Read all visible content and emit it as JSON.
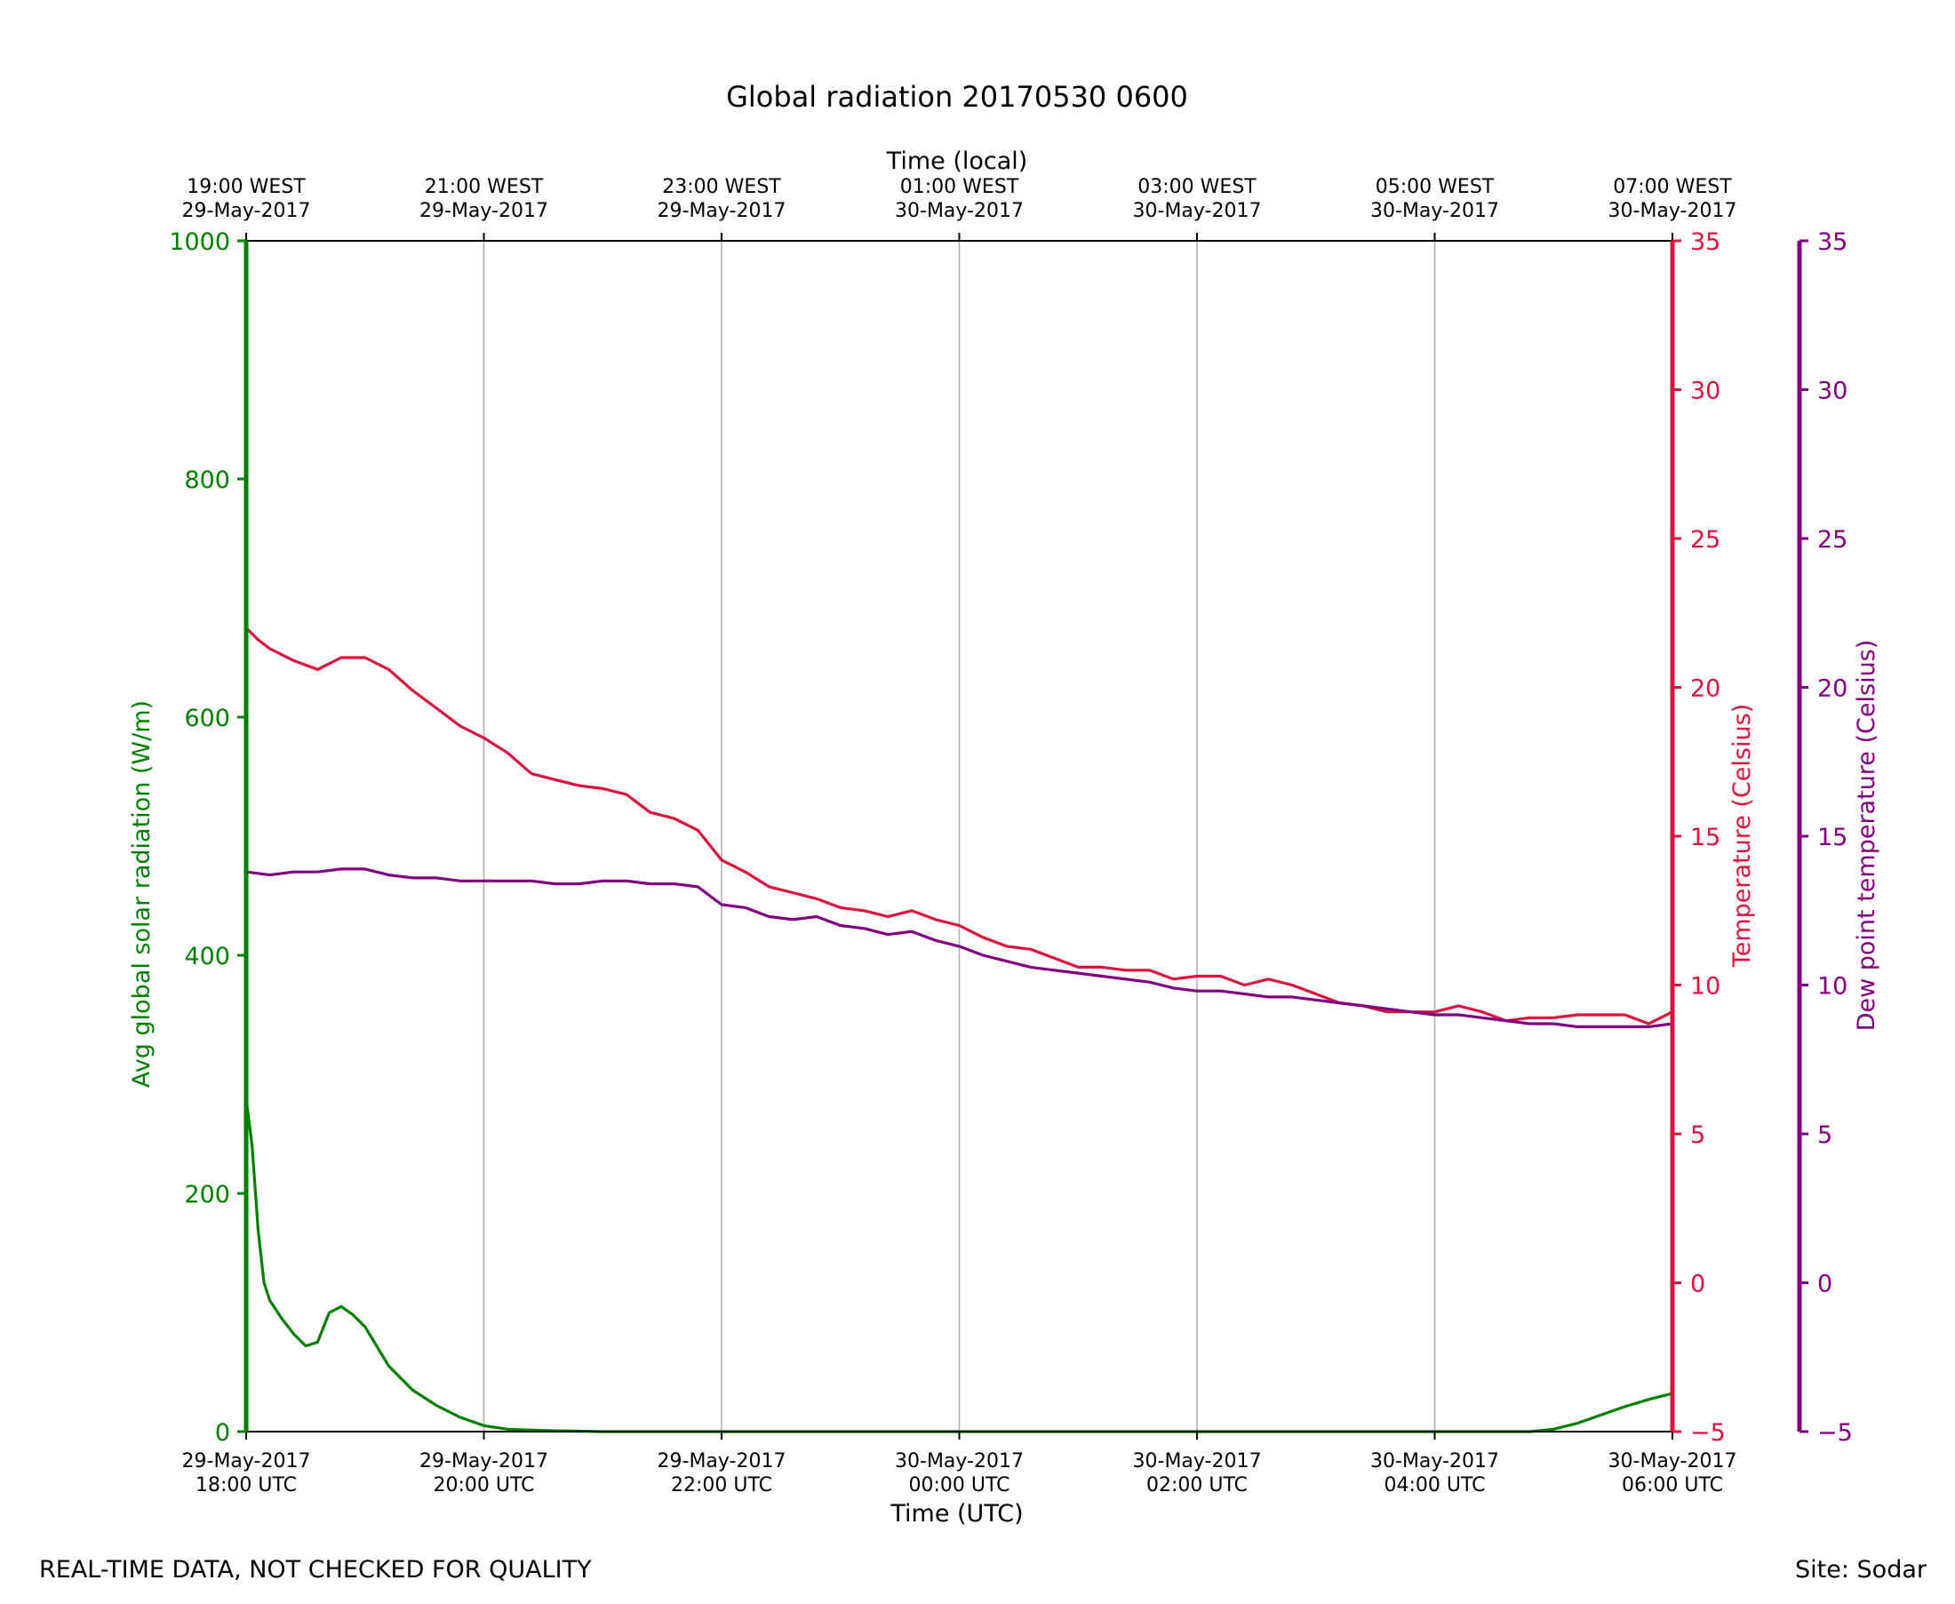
{
  "chart_data": {
    "type": "line",
    "title": "Global radiation 20170530 0600",
    "xlabel": "Time (UTC)",
    "x2label": "Time (local)",
    "x_range_hours": [
      18,
      30
    ],
    "x_ticks_utc": [
      {
        "hour": 18,
        "date": "29-May-2017",
        "time": "18:00 UTC"
      },
      {
        "hour": 20,
        "date": "29-May-2017",
        "time": "20:00 UTC"
      },
      {
        "hour": 22,
        "date": "29-May-2017",
        "time": "22:00 UTC"
      },
      {
        "hour": 24,
        "date": "30-May-2017",
        "time": "00:00 UTC"
      },
      {
        "hour": 26,
        "date": "30-May-2017",
        "time": "02:00 UTC"
      },
      {
        "hour": 28,
        "date": "30-May-2017",
        "time": "04:00 UTC"
      },
      {
        "hour": 30,
        "date": "30-May-2017",
        "time": "06:00 UTC"
      }
    ],
    "x_ticks_local": [
      {
        "hour": 18,
        "time": "19:00 WEST",
        "date": "29-May-2017"
      },
      {
        "hour": 20,
        "time": "21:00 WEST",
        "date": "29-May-2017"
      },
      {
        "hour": 22,
        "time": "23:00 WEST",
        "date": "29-May-2017"
      },
      {
        "hour": 24,
        "time": "01:00 WEST",
        "date": "30-May-2017"
      },
      {
        "hour": 26,
        "time": "03:00 WEST",
        "date": "30-May-2017"
      },
      {
        "hour": 28,
        "time": "05:00 WEST",
        "date": "30-May-2017"
      },
      {
        "hour": 30,
        "time": "07:00 WEST",
        "date": "30-May-2017"
      }
    ],
    "grid": "vertical",
    "axes": {
      "radiation": {
        "label": "Avg global solar radiation (W/m)",
        "ylim": [
          0,
          1000
        ],
        "ticks": [
          0,
          200,
          400,
          600,
          800,
          1000
        ],
        "color": "#008000"
      },
      "temperature": {
        "label": "Temperature (Celsius)",
        "ylim": [
          -5,
          35
        ],
        "ticks": [
          -5,
          0,
          5,
          10,
          15,
          20,
          25,
          30,
          35
        ],
        "color": "#dc143c"
      },
      "dewpoint": {
        "label": "Dew point temperature (Celsius)",
        "ylim": [
          -5,
          35
        ],
        "ticks": [
          -5,
          0,
          5,
          10,
          15,
          20,
          25,
          30,
          35
        ],
        "color": "#800080"
      }
    },
    "series": [
      {
        "axis": "radiation",
        "color": "#008000",
        "x": [
          18.0,
          18.05,
          18.1,
          18.15,
          18.2,
          18.3,
          18.4,
          18.5,
          18.6,
          18.7,
          18.8,
          18.9,
          19.0,
          19.2,
          19.4,
          19.6,
          19.8,
          20.0,
          20.2,
          20.5,
          21.0,
          22.0,
          23.0,
          24.0,
          25.0,
          26.0,
          27.0,
          28.0,
          28.8,
          29.0,
          29.2,
          29.4,
          29.6,
          29.8,
          30.0
        ],
        "y": [
          280,
          240,
          170,
          125,
          110,
          95,
          82,
          72,
          75,
          100,
          105,
          98,
          88,
          55,
          35,
          22,
          12,
          5,
          2,
          1,
          0,
          0,
          0,
          0,
          0,
          0,
          0,
          0,
          0,
          2,
          7,
          14,
          21,
          27,
          32
        ]
      },
      {
        "axis": "temperature",
        "color": "#dc143c",
        "x": [
          18.0,
          18.1,
          18.2,
          18.4,
          18.6,
          18.8,
          19.0,
          19.2,
          19.4,
          19.6,
          19.8,
          20.0,
          20.2,
          20.4,
          20.6,
          20.8,
          21.0,
          21.2,
          21.4,
          21.6,
          21.8,
          22.0,
          22.2,
          22.4,
          22.6,
          22.8,
          23.0,
          23.2,
          23.4,
          23.6,
          23.8,
          24.0,
          24.2,
          24.4,
          24.6,
          24.8,
          25.0,
          25.2,
          25.4,
          25.6,
          25.8,
          26.0,
          26.2,
          26.4,
          26.6,
          26.8,
          27.0,
          27.2,
          27.4,
          27.6,
          27.8,
          28.0,
          28.2,
          28.4,
          28.6,
          28.8,
          29.0,
          29.2,
          29.4,
          29.6,
          29.8,
          30.0
        ],
        "y": [
          22.0,
          21.6,
          21.3,
          20.9,
          20.6,
          21.0,
          21.0,
          20.6,
          19.9,
          19.3,
          18.7,
          18.3,
          17.8,
          17.1,
          16.9,
          16.7,
          16.6,
          16.4,
          15.8,
          15.6,
          15.2,
          14.2,
          13.8,
          13.3,
          13.1,
          12.9,
          12.6,
          12.5,
          12.3,
          12.5,
          12.2,
          12.0,
          11.6,
          11.3,
          11.2,
          10.9,
          10.6,
          10.6,
          10.5,
          10.5,
          10.2,
          10.3,
          10.3,
          10.0,
          10.2,
          10.0,
          9.7,
          9.4,
          9.3,
          9.1,
          9.1,
          9.1,
          9.3,
          9.1,
          8.8,
          8.9,
          8.9,
          9.0,
          9.0,
          9.0,
          8.7,
          9.1
        ]
      },
      {
        "axis": "dewpoint",
        "color": "#800080",
        "x": [
          18.0,
          18.2,
          18.4,
          18.6,
          18.8,
          19.0,
          19.2,
          19.4,
          19.6,
          19.8,
          20.0,
          20.2,
          20.4,
          20.6,
          20.8,
          21.0,
          21.2,
          21.4,
          21.6,
          21.8,
          22.0,
          22.2,
          22.4,
          22.6,
          22.8,
          23.0,
          23.2,
          23.4,
          23.6,
          23.8,
          24.0,
          24.2,
          24.4,
          24.6,
          24.8,
          25.0,
          25.2,
          25.4,
          25.6,
          25.8,
          26.0,
          26.2,
          26.4,
          26.6,
          26.8,
          27.0,
          27.2,
          27.4,
          27.6,
          27.8,
          28.0,
          28.2,
          28.4,
          28.6,
          28.8,
          29.0,
          29.2,
          29.4,
          29.6,
          29.8,
          30.0
        ],
        "y": [
          13.8,
          13.7,
          13.8,
          13.8,
          13.9,
          13.9,
          13.7,
          13.6,
          13.6,
          13.5,
          13.5,
          13.5,
          13.5,
          13.4,
          13.4,
          13.5,
          13.5,
          13.4,
          13.4,
          13.3,
          12.7,
          12.6,
          12.3,
          12.2,
          12.3,
          12.0,
          11.9,
          11.7,
          11.8,
          11.5,
          11.3,
          11.0,
          10.8,
          10.6,
          10.5,
          10.4,
          10.3,
          10.2,
          10.1,
          9.9,
          9.8,
          9.8,
          9.7,
          9.6,
          9.6,
          9.5,
          9.4,
          9.3,
          9.2,
          9.1,
          9.0,
          9.0,
          8.9,
          8.8,
          8.7,
          8.7,
          8.6,
          8.6,
          8.6,
          8.6,
          8.7
        ]
      }
    ]
  },
  "footer": {
    "left": "REAL-TIME DATA, NOT CHECKED FOR QUALITY",
    "right": "Site: Sodar"
  }
}
